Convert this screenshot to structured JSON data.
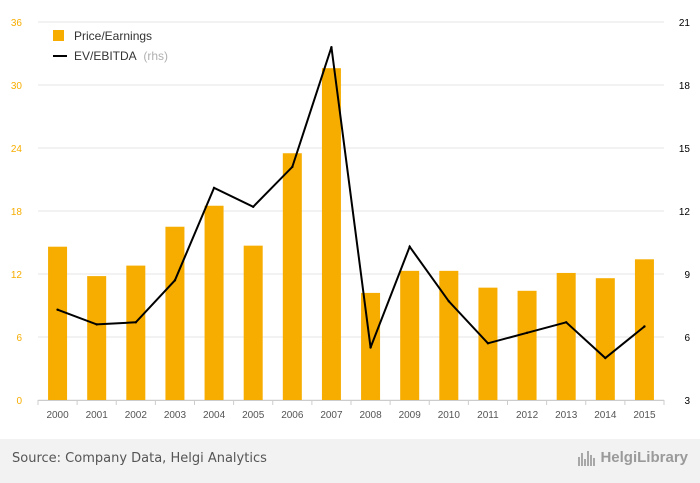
{
  "chart_data": {
    "type": "bar",
    "categories": [
      "2000",
      "2001",
      "2002",
      "2003",
      "2004",
      "2005",
      "2006",
      "2007",
      "2008",
      "2009",
      "2010",
      "2011",
      "2012",
      "2013",
      "2014",
      "2015"
    ],
    "series": [
      {
        "name": "Price/Earnings",
        "type": "bar",
        "axis": "left",
        "color": "#f6ad00",
        "values": [
          14.6,
          11.8,
          12.8,
          16.5,
          18.5,
          14.7,
          23.5,
          31.6,
          10.2,
          12.3,
          12.3,
          10.7,
          10.4,
          12.1,
          11.6,
          13.4
        ]
      },
      {
        "name": "EV/EBITDA",
        "legend_suffix": "(rhs)",
        "type": "line",
        "axis": "right",
        "color": "#000000",
        "values": [
          7.3,
          6.6,
          6.7,
          8.7,
          13.1,
          12.2,
          14.1,
          19.8,
          5.5,
          10.3,
          7.7,
          5.7,
          6.2,
          6.7,
          5.0,
          6.5
        ]
      }
    ],
    "y_left": {
      "min": 0,
      "max": 36,
      "ticks": [
        0,
        6,
        12,
        18,
        24,
        30,
        36
      ]
    },
    "y_right": {
      "min": 3,
      "max": 21,
      "ticks": [
        3,
        6,
        9,
        12,
        15,
        18,
        21
      ]
    },
    "grid": true,
    "legend_position": "top-left",
    "colors": {
      "bar": "#f6ad00",
      "line": "#000000",
      "left_tick": "#f6ad00",
      "right_tick": "#000000",
      "grid": "#e6e6e6"
    }
  },
  "footer": {
    "source": "Source: Company Data, Helgi Analytics",
    "logo_text": "HelgiLibrary"
  }
}
